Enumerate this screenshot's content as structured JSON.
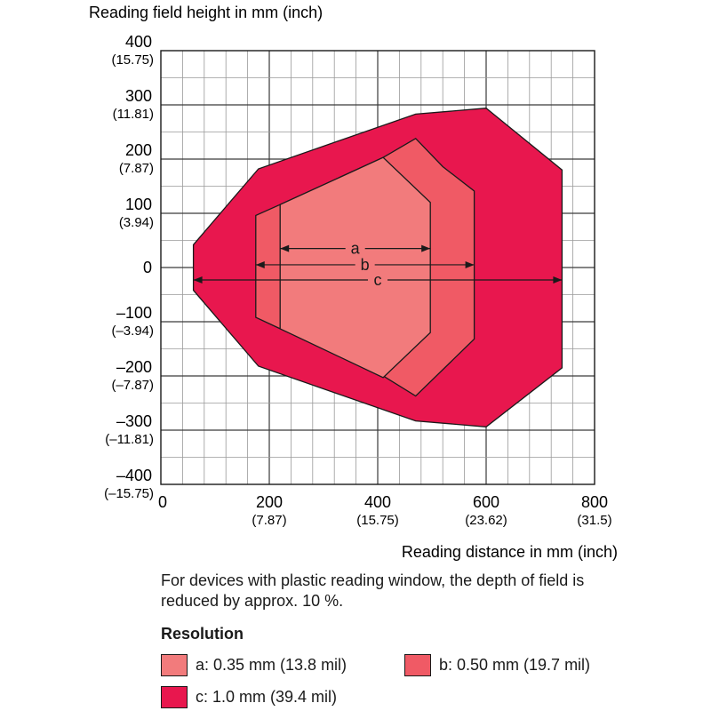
{
  "chart_data": {
    "type": "area",
    "ylabel": "Reading field height in mm (inch)",
    "xlabel": "Reading distance in mm (inch)",
    "xlim": [
      0,
      800
    ],
    "ylim": [
      -400,
      400
    ],
    "grid": true,
    "x_ticks": [
      {
        "value": 0,
        "label": "0",
        "sub": ""
      },
      {
        "value": 200,
        "label": "200",
        "sub": "(7.87)"
      },
      {
        "value": 400,
        "label": "400",
        "sub": "(15.75)"
      },
      {
        "value": 600,
        "label": "600",
        "sub": "(23.62)"
      },
      {
        "value": 800,
        "label": "800",
        "sub": "(31.5)"
      }
    ],
    "y_ticks": [
      {
        "value": 400,
        "label": "400",
        "sub": "(15.75)"
      },
      {
        "value": 300,
        "label": "300",
        "sub": "(11.81)"
      },
      {
        "value": 200,
        "label": "200",
        "sub": "(7.87)"
      },
      {
        "value": 100,
        "label": "100",
        "sub": "(3.94)"
      },
      {
        "value": 0,
        "label": "0",
        "sub": ""
      },
      {
        "value": -100,
        "label": "–100",
        "sub": "(–3.94)"
      },
      {
        "value": -200,
        "label": "–200",
        "sub": "(–7.87)"
      },
      {
        "value": -300,
        "label": "–300",
        "sub": "(–11.81)"
      },
      {
        "value": -400,
        "label": "–400",
        "sub": "(–15.75)"
      }
    ],
    "series": [
      {
        "name": "c",
        "color": "#e8174e",
        "polygon": [
          [
            60,
            42
          ],
          [
            60,
            -42
          ],
          [
            180,
            -182
          ],
          [
            470,
            -283
          ],
          [
            600,
            -294
          ],
          [
            740,
            -185
          ],
          [
            740,
            180
          ],
          [
            600,
            294
          ],
          [
            470,
            283
          ],
          [
            180,
            182
          ]
        ],
        "range": [
          60,
          740
        ],
        "dimension_y": -23
      },
      {
        "name": "b",
        "color": "#f05a65",
        "polygon": [
          [
            175,
            96
          ],
          [
            175,
            -92
          ],
          [
            220,
            -113
          ],
          [
            410,
            -200
          ],
          [
            470,
            -237
          ],
          [
            578,
            -132
          ],
          [
            578,
            141
          ],
          [
            520,
            186
          ],
          [
            470,
            238
          ],
          [
            410,
            203
          ],
          [
            220,
            116
          ]
        ],
        "range": [
          175,
          578
        ],
        "dimension_y": 5
      },
      {
        "name": "a",
        "color": "#f27b7c",
        "polygon": [
          [
            220,
            116
          ],
          [
            220,
            -113
          ],
          [
            410,
            -203
          ],
          [
            497,
            -120
          ],
          [
            497,
            120
          ],
          [
            410,
            203
          ]
        ],
        "range": [
          220,
          497
        ],
        "dimension_y": 35
      }
    ]
  },
  "note": "For devices with plastic reading window, the depth of field is reduced by approx. 10 %.",
  "legend": {
    "title": "Resolution",
    "items": [
      {
        "key": "a",
        "label": "a: 0.35 mm (13.8 mil)",
        "color": "#f27b7c"
      },
      {
        "key": "b",
        "label": "b: 0.50 mm (19.7 mil)",
        "color": "#f05a65"
      },
      {
        "key": "c",
        "label": "c: 1.0 mm (39.4 mil)",
        "color": "#e8174e"
      }
    ]
  }
}
